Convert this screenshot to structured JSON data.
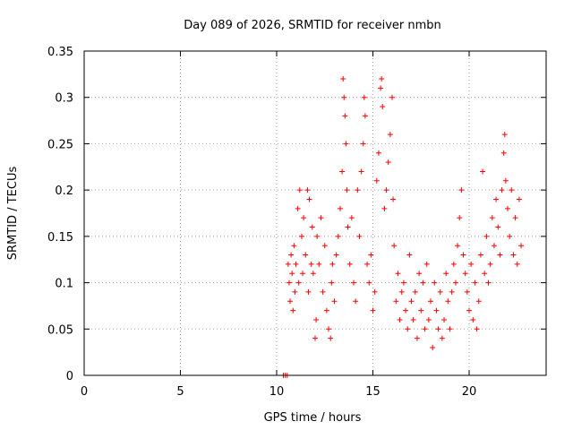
{
  "chart_data": {
    "type": "scatter",
    "title": "Day 089 of 2026, SRMTID for receiver nmbn",
    "xlabel": "GPS time / hours",
    "ylabel": "SRMTID / TECUs",
    "xlim": [
      0,
      24
    ],
    "ylim": [
      0,
      0.35
    ],
    "xticks": [
      0,
      5,
      10,
      15,
      20
    ],
    "xtick_labels": [
      "0",
      "5",
      "10",
      "15",
      "20"
    ],
    "yticks": [
      0,
      0.05,
      0.1,
      0.15,
      0.2,
      0.25,
      0.3,
      0.35
    ],
    "ytick_labels": [
      "0",
      "0.05",
      "0.1",
      "0.15",
      "0.2",
      "0.25",
      "0.3",
      "0.35"
    ],
    "grid": true,
    "marker": "+",
    "series": [
      {
        "name": "SRMTID",
        "color": "#ff0000",
        "points": [
          [
            10.35,
            0.0
          ],
          [
            10.45,
            0.0
          ],
          [
            10.55,
            0.0
          ],
          [
            10.6,
            0.12
          ],
          [
            10.65,
            0.1
          ],
          [
            10.7,
            0.08
          ],
          [
            10.75,
            0.13
          ],
          [
            10.8,
            0.11
          ],
          [
            10.85,
            0.07
          ],
          [
            10.9,
            0.14
          ],
          [
            10.95,
            0.09
          ],
          [
            11.0,
            0.12
          ],
          [
            11.1,
            0.18
          ],
          [
            11.15,
            0.1
          ],
          [
            11.2,
            0.2
          ],
          [
            11.3,
            0.15
          ],
          [
            11.35,
            0.11
          ],
          [
            11.4,
            0.17
          ],
          [
            11.5,
            0.13
          ],
          [
            11.6,
            0.2
          ],
          [
            11.65,
            0.09
          ],
          [
            11.7,
            0.19
          ],
          [
            11.8,
            0.12
          ],
          [
            11.85,
            0.16
          ],
          [
            11.9,
            0.11
          ],
          [
            12.0,
            0.04
          ],
          [
            12.05,
            0.06
          ],
          [
            12.1,
            0.15
          ],
          [
            12.2,
            0.12
          ],
          [
            12.3,
            0.17
          ],
          [
            12.4,
            0.09
          ],
          [
            12.5,
            0.14
          ],
          [
            12.6,
            0.07
          ],
          [
            12.7,
            0.05
          ],
          [
            12.8,
            0.04
          ],
          [
            12.85,
            0.1
          ],
          [
            12.9,
            0.12
          ],
          [
            13.0,
            0.08
          ],
          [
            13.1,
            0.13
          ],
          [
            13.2,
            0.15
          ],
          [
            13.3,
            0.18
          ],
          [
            13.4,
            0.22
          ],
          [
            13.45,
            0.32
          ],
          [
            13.5,
            0.3
          ],
          [
            13.55,
            0.28
          ],
          [
            13.6,
            0.25
          ],
          [
            13.65,
            0.2
          ],
          [
            13.7,
            0.16
          ],
          [
            13.8,
            0.12
          ],
          [
            13.9,
            0.17
          ],
          [
            14.0,
            0.1
          ],
          [
            14.1,
            0.08
          ],
          [
            14.2,
            0.2
          ],
          [
            14.3,
            0.15
          ],
          [
            14.4,
            0.22
          ],
          [
            14.5,
            0.25
          ],
          [
            14.55,
            0.3
          ],
          [
            14.6,
            0.28
          ],
          [
            14.7,
            0.12
          ],
          [
            14.8,
            0.1
          ],
          [
            14.9,
            0.13
          ],
          [
            15.0,
            0.07
          ],
          [
            15.1,
            0.09
          ],
          [
            15.2,
            0.21
          ],
          [
            15.3,
            0.24
          ],
          [
            15.4,
            0.31
          ],
          [
            15.45,
            0.32
          ],
          [
            15.5,
            0.29
          ],
          [
            15.6,
            0.18
          ],
          [
            15.7,
            0.2
          ],
          [
            15.8,
            0.23
          ],
          [
            15.9,
            0.26
          ],
          [
            16.0,
            0.3
          ],
          [
            16.05,
            0.19
          ],
          [
            16.1,
            0.14
          ],
          [
            16.2,
            0.08
          ],
          [
            16.3,
            0.11
          ],
          [
            16.4,
            0.06
          ],
          [
            16.5,
            0.09
          ],
          [
            16.6,
            0.1
          ],
          [
            16.7,
            0.07
          ],
          [
            16.8,
            0.05
          ],
          [
            16.9,
            0.13
          ],
          [
            17.0,
            0.08
          ],
          [
            17.1,
            0.06
          ],
          [
            17.2,
            0.09
          ],
          [
            17.3,
            0.04
          ],
          [
            17.4,
            0.11
          ],
          [
            17.5,
            0.07
          ],
          [
            17.6,
            0.1
          ],
          [
            17.7,
            0.05
          ],
          [
            17.8,
            0.12
          ],
          [
            17.9,
            0.06
          ],
          [
            18.0,
            0.08
          ],
          [
            18.1,
            0.03
          ],
          [
            18.2,
            0.1
          ],
          [
            18.3,
            0.07
          ],
          [
            18.4,
            0.05
          ],
          [
            18.5,
            0.09
          ],
          [
            18.6,
            0.04
          ],
          [
            18.7,
            0.06
          ],
          [
            18.8,
            0.11
          ],
          [
            18.9,
            0.08
          ],
          [
            19.0,
            0.05
          ],
          [
            19.1,
            0.09
          ],
          [
            19.2,
            0.12
          ],
          [
            19.3,
            0.1
          ],
          [
            19.4,
            0.14
          ],
          [
            19.5,
            0.17
          ],
          [
            19.6,
            0.2
          ],
          [
            19.7,
            0.13
          ],
          [
            19.8,
            0.11
          ],
          [
            19.9,
            0.09
          ],
          [
            20.0,
            0.07
          ],
          [
            20.1,
            0.12
          ],
          [
            20.2,
            0.06
          ],
          [
            20.3,
            0.1
          ],
          [
            20.4,
            0.05
          ],
          [
            20.5,
            0.08
          ],
          [
            20.6,
            0.13
          ],
          [
            20.7,
            0.22
          ],
          [
            20.8,
            0.11
          ],
          [
            20.9,
            0.15
          ],
          [
            21.0,
            0.1
          ],
          [
            21.1,
            0.12
          ],
          [
            21.2,
            0.17
          ],
          [
            21.3,
            0.14
          ],
          [
            21.4,
            0.19
          ],
          [
            21.5,
            0.16
          ],
          [
            21.6,
            0.13
          ],
          [
            21.7,
            0.2
          ],
          [
            21.8,
            0.24
          ],
          [
            21.85,
            0.26
          ],
          [
            21.9,
            0.21
          ],
          [
            22.0,
            0.18
          ],
          [
            22.1,
            0.15
          ],
          [
            22.2,
            0.2
          ],
          [
            22.3,
            0.13
          ],
          [
            22.4,
            0.17
          ],
          [
            22.5,
            0.12
          ],
          [
            22.6,
            0.19
          ],
          [
            22.7,
            0.14
          ]
        ]
      }
    ]
  }
}
